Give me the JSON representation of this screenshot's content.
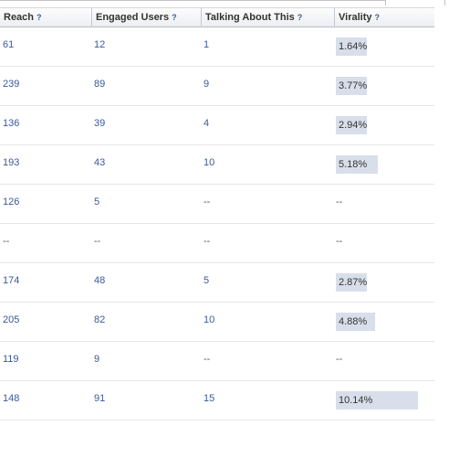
{
  "table": {
    "columns": [
      {
        "label": "Reach",
        "help": "?"
      },
      {
        "label": "Engaged Users",
        "help": "?"
      },
      {
        "label": "Talking About This",
        "help": "?"
      },
      {
        "label": "Virality",
        "help": "?"
      }
    ],
    "rows": [
      {
        "reach": "61",
        "engaged": "12",
        "talking": "1",
        "virality": "1.64%",
        "virality_value": 1.64
      },
      {
        "reach": "239",
        "engaged": "89",
        "talking": "9",
        "virality": "3.77%",
        "virality_value": 3.77
      },
      {
        "reach": "136",
        "engaged": "39",
        "talking": "4",
        "virality": "2.94%",
        "virality_value": 2.94
      },
      {
        "reach": "193",
        "engaged": "43",
        "talking": "10",
        "virality": "5.18%",
        "virality_value": 5.18
      },
      {
        "reach": "126",
        "engaged": "5",
        "talking": "--",
        "virality": "--",
        "virality_value": null
      },
      {
        "reach": "--",
        "engaged": "--",
        "talking": "--",
        "virality": "--",
        "virality_value": null
      },
      {
        "reach": "174",
        "engaged": "48",
        "talking": "5",
        "virality": "2.87%",
        "virality_value": 2.87
      },
      {
        "reach": "205",
        "engaged": "82",
        "talking": "10",
        "virality": "4.88%",
        "virality_value": 4.88
      },
      {
        "reach": "119",
        "engaged": "9",
        "talking": "--",
        "virality": "--",
        "virality_value": null
      },
      {
        "reach": "148",
        "engaged": "91",
        "talking": "15",
        "virality": "10.14%",
        "virality_value": 10.14
      }
    ]
  },
  "colors": {
    "link": "#3b5998",
    "virality_bar": "#d8dfea",
    "row_border": "#e6e6e6"
  }
}
